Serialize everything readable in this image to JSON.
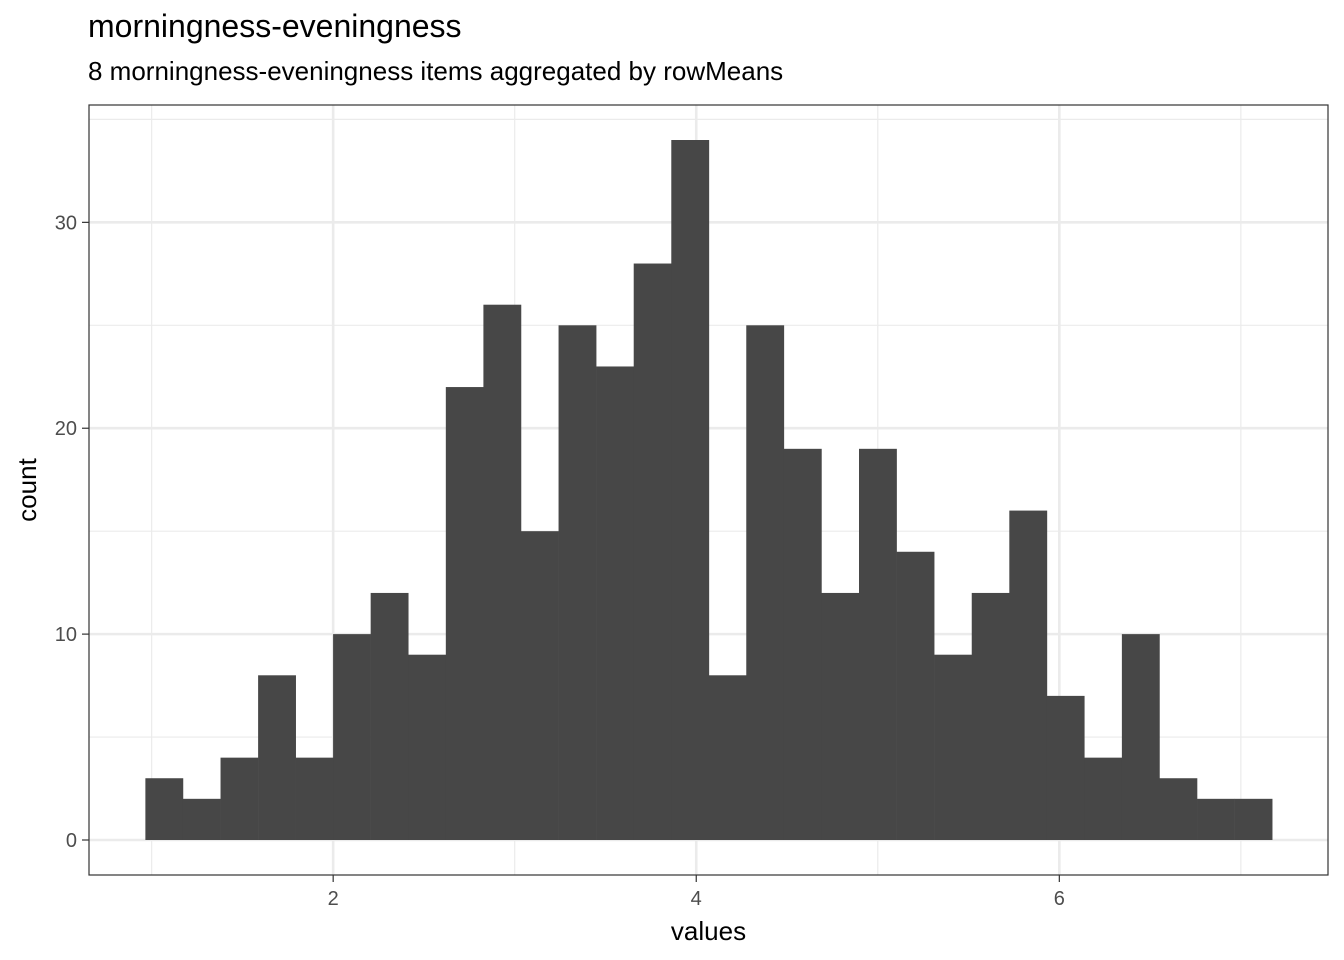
{
  "title": "morningness-eveningness",
  "subtitle": "8 morningness-eveningness items aggregated by rowMeans",
  "chart_data": {
    "type": "bar",
    "title": "morningness-eveningness",
    "subtitle": "8 morningness-eveningness items aggregated by rowMeans",
    "xlabel": "values",
    "ylabel": "count",
    "bin_width": 0.2069,
    "bin_start": 0.9655,
    "bins": [
      {
        "x": 1.069,
        "count": 3
      },
      {
        "x": 1.276,
        "count": 2
      },
      {
        "x": 1.483,
        "count": 4
      },
      {
        "x": 1.69,
        "count": 8
      },
      {
        "x": 1.897,
        "count": 4
      },
      {
        "x": 2.103,
        "count": 10
      },
      {
        "x": 2.31,
        "count": 12
      },
      {
        "x": 2.517,
        "count": 9
      },
      {
        "x": 2.724,
        "count": 22
      },
      {
        "x": 2.931,
        "count": 26
      },
      {
        "x": 3.138,
        "count": 15
      },
      {
        "x": 3.345,
        "count": 25
      },
      {
        "x": 3.552,
        "count": 23
      },
      {
        "x": 3.759,
        "count": 28
      },
      {
        "x": 3.966,
        "count": 34
      },
      {
        "x": 4.172,
        "count": 8
      },
      {
        "x": 4.379,
        "count": 25
      },
      {
        "x": 4.586,
        "count": 19
      },
      {
        "x": 4.793,
        "count": 12
      },
      {
        "x": 5.0,
        "count": 19
      },
      {
        "x": 5.207,
        "count": 14
      },
      {
        "x": 5.414,
        "count": 9
      },
      {
        "x": 5.621,
        "count": 12
      },
      {
        "x": 5.828,
        "count": 16
      },
      {
        "x": 6.034,
        "count": 7
      },
      {
        "x": 6.241,
        "count": 4
      },
      {
        "x": 6.448,
        "count": 10
      },
      {
        "x": 6.655,
        "count": 3
      },
      {
        "x": 6.862,
        "count": 2
      },
      {
        "x": 7.069,
        "count": 2
      }
    ],
    "x_ticks": [
      2,
      4,
      6
    ],
    "x_tick_labels": [
      "2",
      "4",
      "6"
    ],
    "y_ticks": [
      0,
      10,
      20,
      30
    ],
    "y_tick_labels": [
      "0",
      "10",
      "20",
      "30"
    ],
    "xlim": [
      0.655,
      7.48
    ],
    "ylim": [
      -1.7,
      35.7
    ],
    "grid": true,
    "bar_color": "#474747",
    "grid_color": "#ebebeb",
    "panel_border_color": "#333333"
  }
}
